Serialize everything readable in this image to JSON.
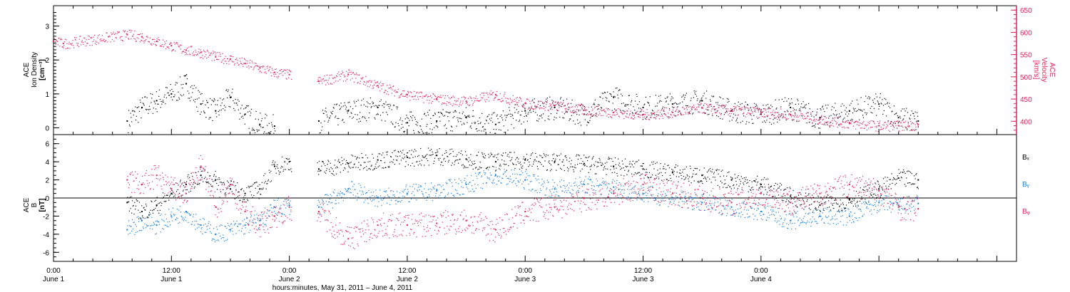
{
  "colors": {
    "black": "#000000",
    "red": "#e0245e",
    "blue": "#1a7fd8"
  },
  "chart_data": [
    {
      "type": "scatter",
      "panel": "density-velocity",
      "ylabel": [
        "ACE",
        "Ion Density",
        "[cm⁻³]"
      ],
      "ylabel_right": [
        "ACE",
        "Velocity",
        "[km/s]"
      ],
      "ylim": [
        -0.2,
        3.6
      ],
      "ylim_right": [
        370,
        660
      ],
      "yticks_left": [
        "0",
        "1",
        "2",
        "3"
      ],
      "yticks_right": [
        "400",
        "450",
        "500",
        "550",
        "600",
        "650"
      ],
      "series": [
        {
          "axis": "left",
          "color": "#000000",
          "x_hours": [
            0,
            6,
            7.5,
            9,
            10.5,
            12,
            13.5,
            15,
            16.5,
            18,
            19.5,
            21,
            22.5,
            24,
            27,
            30,
            33,
            36,
            39,
            42,
            45,
            48,
            51,
            54,
            57,
            60,
            63,
            66,
            69,
            72,
            75,
            78,
            81,
            84,
            86,
            88
          ],
          "values": [
            null,
            null,
            0.2,
            0.6,
            0.8,
            1.0,
            1.3,
            0.7,
            0.5,
            0.9,
            0.4,
            0.1,
            0.05,
            null,
            0.2,
            0.5,
            0.6,
            0.15,
            0.2,
            0.3,
            0.1,
            0.5,
            0.6,
            0.4,
            0.9,
            0.6,
            0.7,
            0.8,
            0.5,
            0.4,
            0.6,
            0.3,
            0.5,
            0.7,
            0.3,
            0.2
          ]
        },
        {
          "axis": "right",
          "color": "#e0245e",
          "x_hours": [
            0,
            1,
            7.5,
            9,
            10.5,
            12,
            13.5,
            15,
            16.5,
            18,
            19.5,
            21,
            22.5,
            24,
            27,
            30,
            33,
            36,
            39,
            42,
            45,
            48,
            51,
            54,
            57,
            60,
            63,
            66,
            69,
            72,
            75,
            78,
            81,
            84,
            86,
            88
          ],
          "values": [
            580,
            575,
            595,
            590,
            580,
            570,
            560,
            555,
            545,
            540,
            530,
            520,
            510,
            505,
            490,
            505,
            480,
            460,
            450,
            445,
            460,
            440,
            435,
            425,
            420,
            415,
            420,
            430,
            425,
            420,
            415,
            405,
            395,
            390,
            390,
            392
          ]
        }
      ]
    },
    {
      "type": "scatter",
      "panel": "magnetic-field",
      "ylabel": [
        "ACE",
        "B",
        "[nT]"
      ],
      "ylim": [
        -7,
        7
      ],
      "yticks": [
        "-6",
        "-4",
        "-2",
        "0",
        "2",
        "4",
        "6"
      ],
      "series": [
        {
          "name": "Bₓ",
          "color": "#000000",
          "x_hours": [
            7.5,
            9,
            10.5,
            12,
            13.5,
            15,
            16.5,
            18,
            19.5,
            21,
            22.5,
            24,
            27,
            30,
            33,
            36,
            39,
            42,
            45,
            48,
            51,
            54,
            57,
            60,
            63,
            66,
            69,
            72,
            75,
            78,
            81,
            84,
            86,
            88
          ],
          "values": [
            -0.5,
            -1.5,
            -0.8,
            0.5,
            1.5,
            2.5,
            2.0,
            1.0,
            0.5,
            1.0,
            3.5,
            4.0,
            3.2,
            3.8,
            4.2,
            4.5,
            4.7,
            4.3,
            4.0,
            4.2,
            4.0,
            3.8,
            3.5,
            3.2,
            2.8,
            2.5,
            2.0,
            1.5,
            0.2,
            -0.8,
            -0.2,
            1.0,
            2.2,
            2.0
          ]
        },
        {
          "name": "Bᵧ",
          "color": "#1a7fd8",
          "x_hours": [
            7.5,
            9,
            10.5,
            12,
            13.5,
            15,
            16.5,
            18,
            19.5,
            21,
            22.5,
            24,
            27,
            30,
            33,
            36,
            39,
            42,
            45,
            48,
            51,
            54,
            57,
            60,
            63,
            66,
            69,
            72,
            75,
            78,
            81,
            84,
            86,
            88
          ],
          "values": [
            -3.5,
            -2.5,
            -3.0,
            -2.0,
            -1.5,
            -3.0,
            -4.0,
            -3.5,
            -3.0,
            -2.5,
            -1.0,
            -0.8,
            -1.0,
            1.0,
            0.0,
            0.5,
            0.8,
            1.5,
            2.5,
            2.0,
            1.0,
            1.5,
            1.2,
            0.5,
            0.0,
            -0.5,
            -1.0,
            -1.5,
            -2.5,
            -2.0,
            -2.0,
            -0.5,
            -0.8,
            -0.6
          ]
        },
        {
          "name": "Bᵩ",
          "color": "#e0245e",
          "x_hours": [
            7.5,
            9,
            10.5,
            12,
            13.5,
            15,
            16.5,
            18,
            19.5,
            21,
            22.5,
            24,
            27,
            30,
            33,
            36,
            39,
            42,
            45,
            48,
            51,
            54,
            57,
            60,
            63,
            66,
            69,
            72,
            75,
            78,
            81,
            84,
            86,
            88
          ],
          "values": [
            2.0,
            1.5,
            2.5,
            1.0,
            0.5,
            3.5,
            -1.0,
            1.5,
            -1.5,
            -3.0,
            -2.0,
            -1.0,
            -1.5,
            -4.5,
            -3.0,
            -3.0,
            -2.8,
            -2.5,
            -3.5,
            -1.5,
            -1.0,
            0.0,
            0.5,
            1.5,
            0.5,
            0.0,
            -0.5,
            0.5,
            -0.5,
            0.5,
            1.5,
            0.8,
            -1.0,
            -1.2
          ]
        }
      ]
    }
  ],
  "xaxis": {
    "label": "hours:minutes, May 31, 2011 –  June  4, 2011",
    "ticks": [
      {
        "hour": 0,
        "time": "0:00",
        "date": "June 1"
      },
      {
        "hour": 12,
        "time": "12:00",
        "date": "June 1"
      },
      {
        "hour": 24,
        "time": "0:00",
        "date": "June 2"
      },
      {
        "hour": 36,
        "time": "12:00",
        "date": "June 2"
      },
      {
        "hour": 48,
        "time": "0:00",
        "date": "June 3"
      },
      {
        "hour": 60,
        "time": "12:00",
        "date": "June 3"
      },
      {
        "hour": 72,
        "time": "0:00",
        "date": "June 4"
      }
    ],
    "xlim": [
      0,
      98
    ]
  },
  "legend": {
    "bx": "Bₓ",
    "by": "Bᵧ",
    "bz": "Bᵩ"
  }
}
